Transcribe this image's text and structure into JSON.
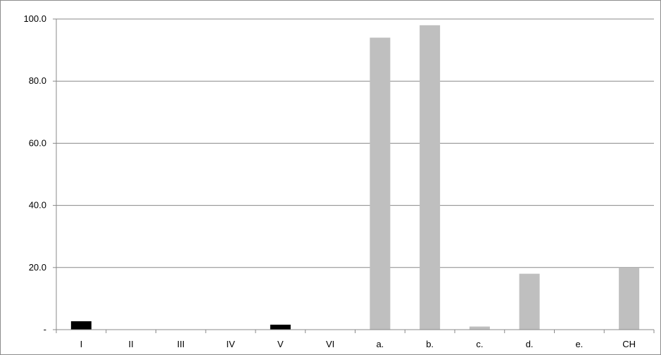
{
  "chart_data": {
    "type": "bar",
    "categories": [
      "I",
      "II",
      "III",
      "IV",
      "V",
      "VI",
      "a.",
      "b.",
      "c.",
      "d.",
      "e.",
      "CH"
    ],
    "values": [
      2.7,
      0,
      0,
      0,
      1.6,
      0,
      94.0,
      98.0,
      1.0,
      18.0,
      0,
      20.0
    ],
    "bar_colors": [
      "#000000",
      "#000000",
      "#000000",
      "#000000",
      "#000000",
      "#000000",
      "#bfbfbf",
      "#bfbfbf",
      "#bfbfbf",
      "#bfbfbf",
      "#bfbfbf",
      "#bfbfbf"
    ],
    "y_ticks": [
      0,
      20,
      40,
      60,
      80,
      100
    ],
    "y_tick_labels": [
      "-",
      "20.0",
      "40.0",
      "60.0",
      "80.0",
      "100.0"
    ],
    "ylim": [
      0,
      100
    ],
    "grid": true,
    "legend": "none",
    "title": "",
    "xlabel": "",
    "ylabel": ""
  }
}
